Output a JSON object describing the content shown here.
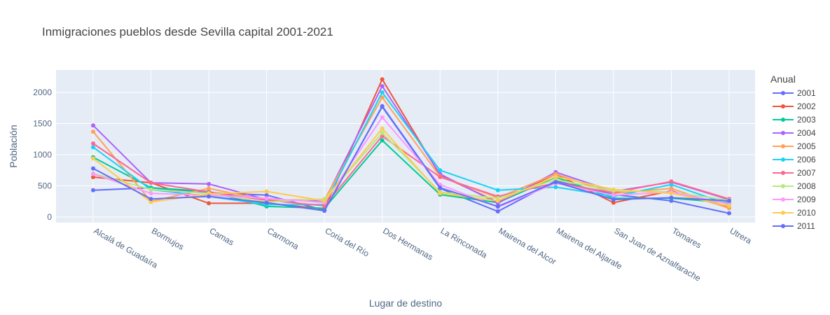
{
  "chart_data": {
    "type": "line",
    "title": "Inmigraciones pueblos desde Sevilla capital 2001-2021",
    "xlabel": "Lugar de destino",
    "ylabel": "Población",
    "ylim": [
      -90,
      2360
    ],
    "yticks": [
      0,
      500,
      1000,
      1500,
      2000
    ],
    "grid": true,
    "legend": {
      "title": "Anual",
      "position": "right"
    },
    "categories": [
      "Alcalá de Guadaíra",
      "Bormujos",
      "Camas",
      "Carmona",
      "Coria del Río",
      "Dos Hermanas",
      "La Rinconada",
      "Mairena del Alcor",
      "Mairena del Aljarafe",
      "San Juan de Aznalfarache",
      "Tomares",
      "Utrera"
    ],
    "series": [
      {
        "name": "2001",
        "color": "#636efa",
        "values": [
          430,
          470,
          390,
          350,
          110,
          1770,
          460,
          90,
          580,
          360,
          260,
          60
        ]
      },
      {
        "name": "2002",
        "color": "#EF553B",
        "values": [
          640,
          550,
          220,
          220,
          130,
          2210,
          670,
          240,
          690,
          230,
          420,
          150
        ]
      },
      {
        "name": "2003",
        "color": "#00cc96",
        "values": [
          960,
          470,
          410,
          170,
          140,
          1230,
          360,
          230,
          640,
          300,
          300,
          230
        ]
      },
      {
        "name": "2004",
        "color": "#ab63fa",
        "values": [
          1470,
          550,
          530,
          280,
          260,
          2100,
          690,
          220,
          720,
          410,
          560,
          280
        ]
      },
      {
        "name": "2005",
        "color": "#FFA15A",
        "values": [
          1370,
          250,
          460,
          270,
          280,
          1920,
          650,
          310,
          690,
          380,
          460,
          140
        ]
      },
      {
        "name": "2006",
        "color": "#19d3f3",
        "values": [
          1120,
          440,
          330,
          200,
          200,
          2000,
          750,
          430,
          480,
          330,
          520,
          200
        ]
      },
      {
        "name": "2007",
        "color": "#FF6692",
        "values": [
          1180,
          550,
          400,
          270,
          180,
          1300,
          640,
          330,
          550,
          390,
          570,
          290
        ]
      },
      {
        "name": "2008",
        "color": "#B6E880",
        "values": [
          700,
          440,
          380,
          240,
          290,
          1350,
          400,
          300,
          600,
          420,
          400,
          270
        ]
      },
      {
        "name": "2009",
        "color": "#FF97FF",
        "values": [
          690,
          380,
          350,
          300,
          230,
          1600,
          520,
          160,
          540,
          350,
          400,
          210
        ]
      },
      {
        "name": "2010",
        "color": "#FECB52",
        "values": [
          940,
          240,
          370,
          410,
          260,
          1420,
          380,
          260,
          650,
          440,
          380,
          180
        ]
      },
      {
        "name": "2011",
        "color": "#636efa",
        "values": [
          780,
          290,
          330,
          230,
          100,
          1780,
          470,
          170,
          560,
          280,
          310,
          260
        ]
      }
    ],
    "legend_visible_count": 11
  }
}
